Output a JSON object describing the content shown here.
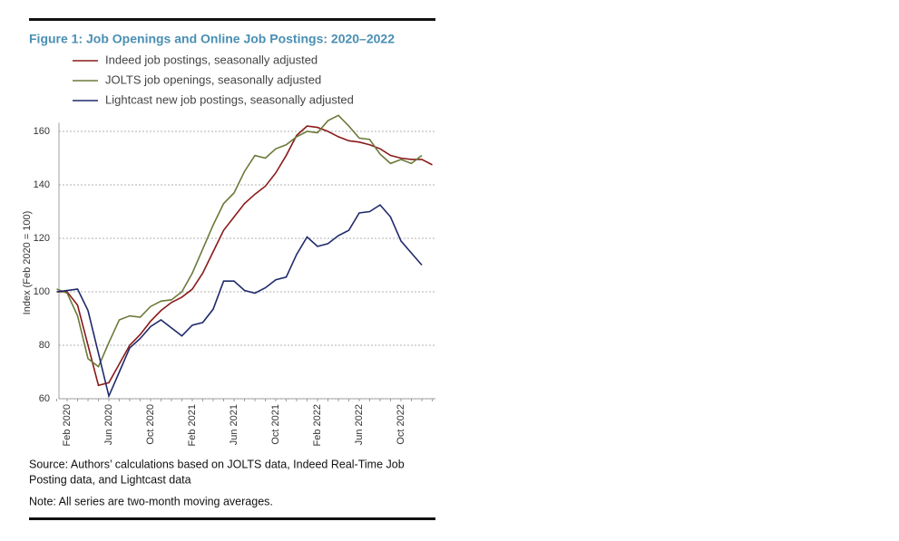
{
  "chart_data": {
    "type": "line",
    "title": "Figure 1: Job Openings and Online Job Postings: 2020–2022",
    "ylabel": "Index (Feb 2020 = 100)",
    "categories": [
      null,
      "Feb 2020",
      null,
      null,
      null,
      "Jun 2020",
      null,
      null,
      null,
      "Oct 2020",
      null,
      null,
      null,
      "Feb 2021",
      null,
      null,
      null,
      "Jun 2021",
      null,
      null,
      null,
      "Oct 2021",
      null,
      null,
      null,
      "Feb 2022",
      null,
      null,
      null,
      "Jun 2022",
      null,
      null,
      null,
      "Oct 2022",
      null,
      null,
      null
    ],
    "ylim": [
      60,
      170
    ],
    "yticks": [
      60,
      80,
      100,
      120,
      140,
      160
    ],
    "grid": true,
    "series": [
      {
        "name": "Indeed job postings, seasonally adjusted",
        "color": "#8b1a1a",
        "values": [
          100,
          100,
          95,
          80,
          65,
          66,
          73,
          80,
          84,
          89,
          93,
          96,
          98,
          101,
          107,
          115,
          123,
          128,
          133,
          136.5,
          139.5,
          144.5,
          151,
          158.5,
          162,
          161.5,
          160,
          158,
          156.5,
          156,
          155,
          153.5,
          151,
          150,
          149.5,
          149.5,
          147.5
        ]
      },
      {
        "name": "JOLTS job openings, seasonally adjusted",
        "color": "#6b7a3a",
        "values": [
          101,
          99.5,
          91,
          75,
          72,
          81,
          89.5,
          91,
          90.5,
          94.5,
          96.5,
          97,
          100,
          107,
          116,
          125,
          133,
          137,
          145,
          151,
          150,
          153.5,
          155,
          158,
          160,
          159.5,
          164,
          166,
          162,
          157.5,
          157,
          151.5,
          148,
          149.5,
          148,
          151,
          null
        ]
      },
      {
        "name": "Lightcast new job postings, seasonally adjusted",
        "color": "#1f2a6b",
        "values": [
          100,
          100.5,
          101,
          93,
          77,
          61,
          70,
          79,
          82.5,
          87,
          89.5,
          86.5,
          83.5,
          87.5,
          88.5,
          93.5,
          104,
          104,
          100.5,
          99.5,
          101.5,
          104.5,
          105.5,
          114,
          120.5,
          117,
          118,
          121,
          123,
          129.5,
          130,
          132.5,
          128,
          119,
          114.5,
          110,
          null
        ]
      }
    ],
    "source": "Source: Authors’ calculations based on JOLTS data, Indeed Real-Time Job",
    "source_line2": "Posting data, and Lightcast data",
    "note": "Note: All series are two-month moving averages."
  }
}
